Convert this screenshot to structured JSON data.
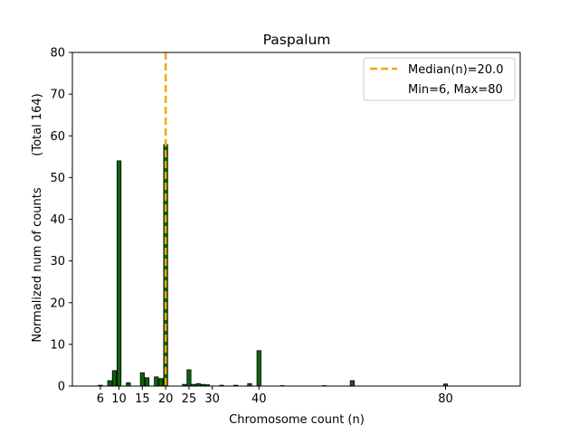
{
  "chart_data": {
    "type": "bar",
    "title": "Paspalum",
    "xlabel": "Chromosome count (n)",
    "ylabel": "Normalized num of counts",
    "ylabel_extra": "(Total 164)",
    "xlim": [
      0,
      96
    ],
    "ylim": [
      0,
      80
    ],
    "xticks": [
      6,
      10,
      15,
      20,
      25,
      30,
      40,
      80
    ],
    "yticks": [
      0,
      10,
      20,
      30,
      40,
      50,
      60,
      70,
      80
    ],
    "bar_color": "#0a640a",
    "bar_edge_color": "#000000",
    "median_color": "#f5a800",
    "x": [
      6,
      8,
      9,
      10,
      12,
      15,
      16,
      18,
      19,
      20,
      24,
      25,
      26,
      27,
      28,
      29,
      32,
      35,
      38,
      40,
      45,
      54,
      60,
      80
    ],
    "values": [
      0.2,
      1.3,
      3.7,
      54.0,
      0.8,
      3.2,
      2.0,
      2.2,
      1.8,
      57.9,
      0.4,
      3.9,
      0.4,
      0.6,
      0.4,
      0.3,
      0.2,
      0.2,
      0.6,
      8.5,
      0.1,
      0.1,
      1.3,
      0.5
    ],
    "median": 20.0,
    "legend": {
      "position": "top-right",
      "entries": [
        "Median(n)=20.0",
        "Min=6, Max=80"
      ]
    }
  }
}
